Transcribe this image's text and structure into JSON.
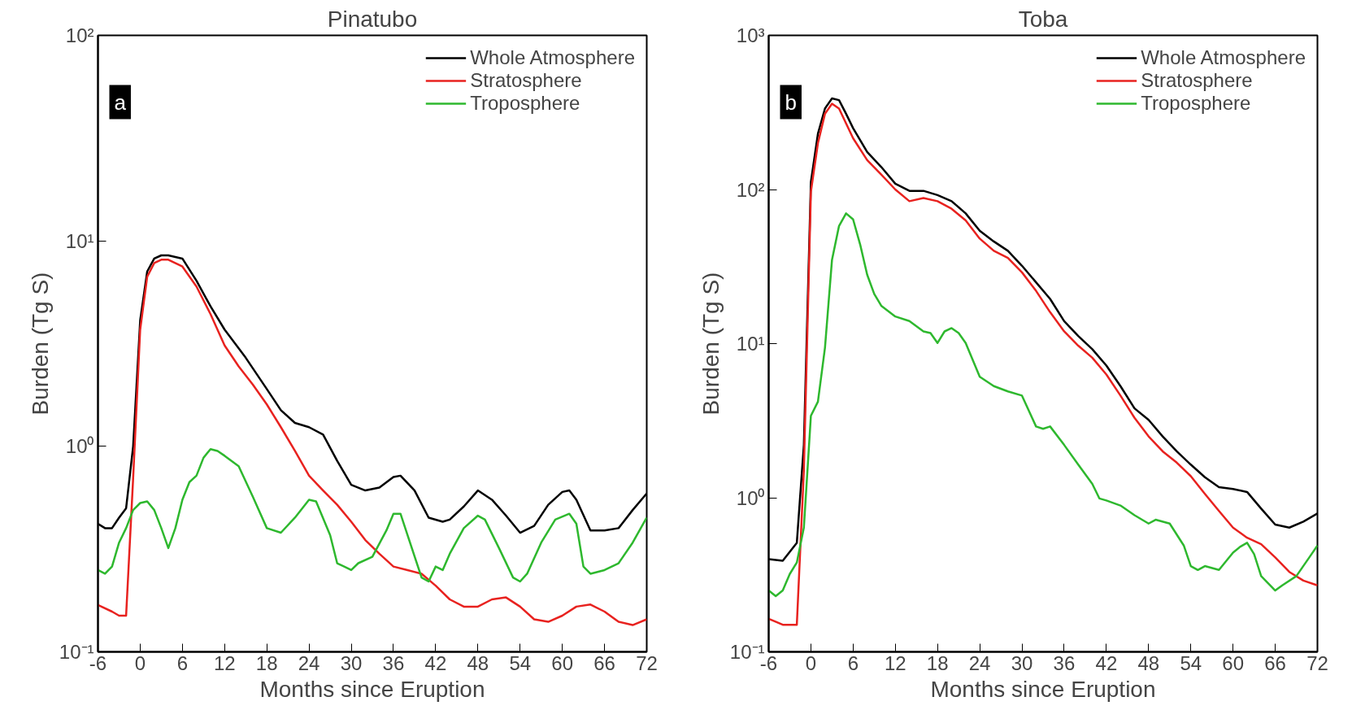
{
  "chart_data": [
    {
      "type": "line",
      "title": "Pinatubo",
      "xlabel": "Months since Eruption",
      "ylabel": "Burden (Tg S)",
      "log": "y",
      "grid": false,
      "legend": "top right",
      "line_style": "solid",
      "marker": "none",
      "xlim": [
        -6,
        72
      ],
      "xticks": [
        -6,
        0,
        6,
        12,
        18,
        24,
        30,
        36,
        42,
        48,
        54,
        60,
        66,
        72
      ],
      "ylim": [
        0.1,
        100
      ],
      "yticks": [
        {
          "value": 0.1,
          "label": "10⁻¹"
        },
        {
          "value": 1,
          "label": "10⁰"
        },
        {
          "value": 10,
          "label": "10¹"
        },
        {
          "value": 100,
          "label": "10²"
        }
      ],
      "annotations": [
        "a"
      ],
      "series": [
        {
          "name": "Whole Atmosphere",
          "color": "#000000",
          "x": [
            -6,
            -5,
            -4,
            -3,
            -2,
            -1,
            0,
            1,
            2,
            3,
            4,
            6,
            8,
            10,
            12,
            15,
            18,
            20,
            22,
            24,
            26,
            28,
            30,
            32,
            34,
            36,
            37,
            39,
            41,
            43,
            44,
            46,
            48,
            50,
            52,
            54,
            56,
            58,
            60,
            61,
            62,
            64,
            66,
            68,
            70,
            72
          ],
          "values": [
            0.42,
            0.4,
            0.4,
            0.45,
            0.5,
            1.0,
            4.1,
            7.1,
            8.2,
            8.5,
            8.5,
            8.2,
            6.4,
            4.8,
            3.7,
            2.7,
            1.9,
            1.5,
            1.3,
            1.24,
            1.14,
            0.85,
            0.65,
            0.61,
            0.63,
            0.71,
            0.72,
            0.61,
            0.45,
            0.43,
            0.44,
            0.51,
            0.61,
            0.55,
            0.46,
            0.38,
            0.41,
            0.52,
            0.6,
            0.61,
            0.55,
            0.39,
            0.39,
            0.4,
            0.49,
            0.59
          ]
        },
        {
          "name": "Stratosphere",
          "color": "#e8221f",
          "x": [
            -6,
            -4,
            -3,
            -2,
            -1,
            0,
            1,
            2,
            3,
            4,
            6,
            8,
            10,
            12,
            14,
            16,
            18,
            20,
            22,
            24,
            26,
            28,
            30,
            32,
            34,
            36,
            38,
            40,
            42,
            44,
            46,
            48,
            50,
            52,
            54,
            56,
            58,
            60,
            62,
            64,
            66,
            68,
            70,
            72
          ],
          "values": [
            0.169,
            0.157,
            0.15,
            0.15,
            0.7,
            3.7,
            6.7,
            7.8,
            8.1,
            8.1,
            7.5,
            6.0,
            4.4,
            3.1,
            2.45,
            2.0,
            1.6,
            1.24,
            0.95,
            0.72,
            0.61,
            0.52,
            0.43,
            0.35,
            0.3,
            0.26,
            0.25,
            0.24,
            0.21,
            0.18,
            0.166,
            0.166,
            0.18,
            0.184,
            0.166,
            0.144,
            0.14,
            0.15,
            0.166,
            0.17,
            0.157,
            0.14,
            0.135,
            0.144
          ]
        },
        {
          "name": "Troposphere",
          "color": "#2eb82e",
          "x": [
            -6,
            -5,
            -4,
            -3,
            -2,
            -1,
            0,
            1,
            2,
            3,
            4,
            5,
            6,
            7,
            8,
            9,
            10,
            11,
            12,
            14,
            16,
            18,
            20,
            22,
            24,
            25,
            27,
            28,
            29,
            30,
            31,
            33,
            35,
            36,
            37,
            38,
            40,
            41,
            42,
            43,
            44,
            46,
            48,
            49,
            51,
            53,
            54,
            55,
            57,
            59,
            61,
            62,
            63,
            64,
            66,
            68,
            70,
            72
          ],
          "values": [
            0.25,
            0.24,
            0.26,
            0.34,
            0.4,
            0.49,
            0.53,
            0.54,
            0.49,
            0.4,
            0.32,
            0.4,
            0.55,
            0.67,
            0.72,
            0.88,
            0.97,
            0.95,
            0.9,
            0.8,
            0.57,
            0.4,
            0.38,
            0.45,
            0.55,
            0.54,
            0.37,
            0.27,
            0.26,
            0.25,
            0.27,
            0.29,
            0.39,
            0.47,
            0.47,
            0.37,
            0.23,
            0.22,
            0.26,
            0.25,
            0.3,
            0.4,
            0.46,
            0.44,
            0.32,
            0.23,
            0.22,
            0.24,
            0.34,
            0.44,
            0.47,
            0.42,
            0.26,
            0.24,
            0.25,
            0.27,
            0.34,
            0.45
          ]
        }
      ]
    },
    {
      "type": "line",
      "title": "Toba",
      "xlabel": "Months since Eruption",
      "ylabel": "Burden (Tg S)",
      "log": "y",
      "grid": false,
      "legend": "top right",
      "line_style": "solid",
      "marker": "none",
      "xlim": [
        -6,
        72
      ],
      "xticks": [
        -6,
        0,
        6,
        12,
        18,
        24,
        30,
        36,
        42,
        48,
        54,
        60,
        66,
        72
      ],
      "ylim": [
        0.1,
        1000
      ],
      "yticks": [
        {
          "value": 0.1,
          "label": "10⁻¹"
        },
        {
          "value": 1,
          "label": "10⁰"
        },
        {
          "value": 10,
          "label": "10¹"
        },
        {
          "value": 100,
          "label": "10²"
        },
        {
          "value": 1000,
          "label": "10³"
        }
      ],
      "annotations": [
        "b"
      ],
      "series": [
        {
          "name": "Whole Atmosphere",
          "color": "#000000",
          "x": [
            -6,
            -4,
            -2,
            -1,
            0,
            1,
            2,
            3,
            4,
            5,
            6,
            8,
            10,
            12,
            14,
            16,
            18,
            20,
            22,
            24,
            26,
            28,
            30,
            32,
            34,
            36,
            38,
            40,
            42,
            44,
            46,
            48,
            50,
            52,
            54,
            56,
            58,
            60,
            62,
            64,
            66,
            68,
            70,
            72
          ],
          "values": [
            0.4,
            0.39,
            0.51,
            2.2,
            112,
            230,
            335,
            390,
            380,
            310,
            250,
            175,
            140,
            109,
            98,
            98,
            92,
            84,
            70,
            54,
            46,
            40,
            32,
            25,
            19.5,
            14,
            11.2,
            9.2,
            7.2,
            5.3,
            3.8,
            3.2,
            2.5,
            2.0,
            1.64,
            1.36,
            1.17,
            1.14,
            1.09,
            0.85,
            0.67,
            0.64,
            0.7,
            0.79
          ]
        },
        {
          "name": "Stratosphere",
          "color": "#e8221f",
          "x": [
            -6,
            -4,
            -2,
            -1,
            0,
            1,
            2,
            3,
            4,
            6,
            8,
            10,
            12,
            14,
            16,
            18,
            20,
            22,
            24,
            26,
            28,
            30,
            32,
            34,
            36,
            38,
            40,
            42,
            44,
            46,
            48,
            50,
            52,
            54,
            56,
            58,
            60,
            62,
            64,
            66,
            68,
            70,
            72
          ],
          "values": [
            0.164,
            0.15,
            0.15,
            1.5,
            97,
            200,
            310,
            360,
            335,
            215,
            155,
            125,
            100,
            84,
            88,
            84,
            75,
            63,
            48,
            40,
            36,
            29,
            22,
            16,
            12,
            9.7,
            8.1,
            6.3,
            4.6,
            3.3,
            2.5,
            2.0,
            1.69,
            1.38,
            1.06,
            0.82,
            0.64,
            0.55,
            0.5,
            0.41,
            0.33,
            0.29,
            0.27
          ]
        },
        {
          "name": "Troposphere",
          "color": "#2eb82e",
          "x": [
            -6,
            -5,
            -4,
            -3,
            -2,
            -1,
            0,
            1,
            2,
            3,
            4,
            5,
            6,
            7,
            8,
            9,
            10,
            12,
            14,
            16,
            17,
            18,
            19,
            20,
            21,
            22,
            24,
            26,
            28,
            30,
            32,
            33,
            34,
            36,
            38,
            40,
            41,
            42,
            44,
            46,
            48,
            49,
            51,
            53,
            54,
            55,
            56,
            58,
            60,
            61,
            62,
            63,
            64,
            66,
            67,
            69,
            71,
            72
          ],
          "values": [
            0.25,
            0.23,
            0.25,
            0.32,
            0.38,
            0.64,
            3.4,
            4.2,
            9.4,
            35,
            58,
            70,
            64,
            44,
            28,
            21,
            17.6,
            15,
            14,
            12,
            11.7,
            10.1,
            12,
            12.6,
            11.7,
            10.1,
            6.1,
            5.3,
            4.9,
            4.6,
            2.9,
            2.8,
            2.9,
            2.2,
            1.64,
            1.23,
            0.99,
            0.96,
            0.89,
            0.77,
            0.68,
            0.72,
            0.68,
            0.49,
            0.36,
            0.34,
            0.36,
            0.34,
            0.44,
            0.48,
            0.51,
            0.43,
            0.31,
            0.25,
            0.27,
            0.31,
            0.42,
            0.49
          ]
        }
      ]
    }
  ]
}
